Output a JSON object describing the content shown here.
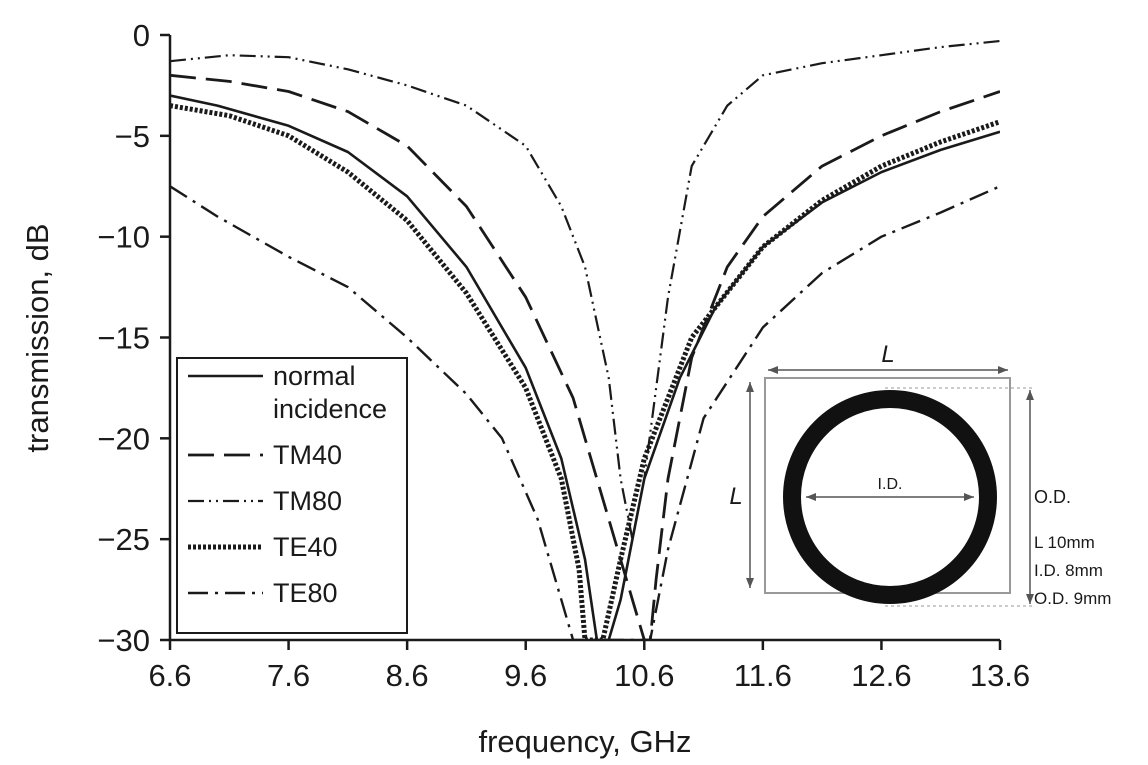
{
  "chart_data": {
    "type": "line",
    "title": "",
    "xlabel": "frequency, GHz",
    "ylabel": "transmission, dB",
    "xlim": [
      6.6,
      13.6
    ],
    "ylim": [
      -30,
      0
    ],
    "x_ticks": [
      "6.6",
      "7.6",
      "8.6",
      "9.6",
      "10.6",
      "11.6",
      "12.6",
      "13.6"
    ],
    "y_ticks": [
      "0",
      "−5",
      "−10",
      "−15",
      "−20",
      "−25",
      "−30"
    ],
    "legend_position": "bottom-left",
    "series": [
      {
        "name": "normal incidence",
        "style": "solid",
        "x": [
          6.6,
          7.0,
          7.6,
          8.1,
          8.6,
          9.1,
          9.6,
          9.9,
          10.1,
          10.2,
          10.3,
          10.4,
          10.6,
          10.9,
          11.2,
          11.6,
          12.1,
          12.6,
          13.1,
          13.6
        ],
        "y": [
          -3.0,
          -3.5,
          -4.5,
          -5.8,
          -8.0,
          -11.5,
          -16.5,
          -21.0,
          -26.0,
          -30.0,
          -30.0,
          -28.0,
          -22.0,
          -17.0,
          -13.5,
          -10.5,
          -8.3,
          -6.8,
          -5.7,
          -4.8
        ]
      },
      {
        "name": "TM40",
        "style": "long-dash",
        "x": [
          6.6,
          7.1,
          7.6,
          8.1,
          8.6,
          9.1,
          9.6,
          10.0,
          10.3,
          10.5,
          10.6,
          10.65,
          10.7,
          10.8,
          11.0,
          11.3,
          11.6,
          12.1,
          12.6,
          13.1,
          13.6
        ],
        "y": [
          -2.0,
          -2.3,
          -2.8,
          -3.8,
          -5.5,
          -8.5,
          -13.0,
          -18.0,
          -24.0,
          -28.0,
          -30.0,
          -30.0,
          -27.0,
          -22.0,
          -16.0,
          -11.5,
          -9.0,
          -6.5,
          -5.0,
          -3.8,
          -2.8
        ]
      },
      {
        "name": "TM80",
        "style": "dash-dot-dot",
        "x": [
          6.6,
          7.1,
          7.6,
          8.1,
          8.6,
          9.1,
          9.6,
          9.9,
          10.1,
          10.3,
          10.4,
          10.5,
          10.6,
          10.8,
          11.0,
          11.3,
          11.6,
          12.1,
          12.6,
          13.1,
          13.6
        ],
        "y": [
          -1.3,
          -1.0,
          -1.1,
          -1.7,
          -2.5,
          -3.5,
          -5.5,
          -8.5,
          -11.5,
          -17.0,
          -22.0,
          -25.0,
          -22.0,
          -13.0,
          -6.5,
          -3.5,
          -2.0,
          -1.4,
          -1.0,
          -0.6,
          -0.3
        ]
      },
      {
        "name": "TE40",
        "style": "dotted",
        "x": [
          6.6,
          7.1,
          7.6,
          8.1,
          8.6,
          9.1,
          9.6,
          9.9,
          10.05,
          10.1,
          10.15,
          10.25,
          10.4,
          10.6,
          11.0,
          11.6,
          12.1,
          12.6,
          13.1,
          13.6
        ],
        "y": [
          -3.5,
          -4.0,
          -5.0,
          -6.8,
          -9.2,
          -12.8,
          -17.5,
          -22.0,
          -26.5,
          -30.0,
          -30.0,
          -30.0,
          -26.0,
          -21.0,
          -15.0,
          -10.5,
          -8.2,
          -6.5,
          -5.3,
          -4.3
        ]
      },
      {
        "name": "TE80",
        "style": "dash-dot",
        "x": [
          6.6,
          7.0,
          7.6,
          8.1,
          8.6,
          9.1,
          9.4,
          9.7,
          9.9,
          10.0,
          10.05,
          10.4,
          10.6,
          10.65,
          10.8,
          11.1,
          11.6,
          12.1,
          12.6,
          13.1,
          13.6
        ],
        "y": [
          -7.5,
          -9.0,
          -11.0,
          -12.5,
          -15.0,
          -17.8,
          -20.0,
          -24.0,
          -28.0,
          -30.0,
          -30.0,
          -30.0,
          -30.0,
          -30.0,
          -25.5,
          -19.0,
          -14.5,
          -11.8,
          -10.0,
          -8.8,
          -7.5
        ]
      }
    ],
    "legend": {
      "entries": [
        {
          "lines": [
            "normal",
            "incidence"
          ],
          "style": "solid"
        },
        {
          "lines": [
            "TM40"
          ],
          "style": "long-dash"
        },
        {
          "lines": [
            "TM80"
          ],
          "style": "dash-dot-dot"
        },
        {
          "lines": [
            "TE40"
          ],
          "style": "dotted"
        },
        {
          "lines": [
            "TE80"
          ],
          "style": "dash-dot"
        }
      ]
    },
    "inset": {
      "width_label": "L",
      "height_label": "L",
      "inner_label": "I.D.",
      "outer_label": "O.D.",
      "specs": [
        "L 10mm",
        "I.D. 8mm",
        "O.D. 9mm"
      ]
    }
  },
  "colors": {
    "line": "#1a1a1a",
    "axis": "#1a1a1a",
    "inset_frame": "#999999",
    "ring": "#111111"
  }
}
